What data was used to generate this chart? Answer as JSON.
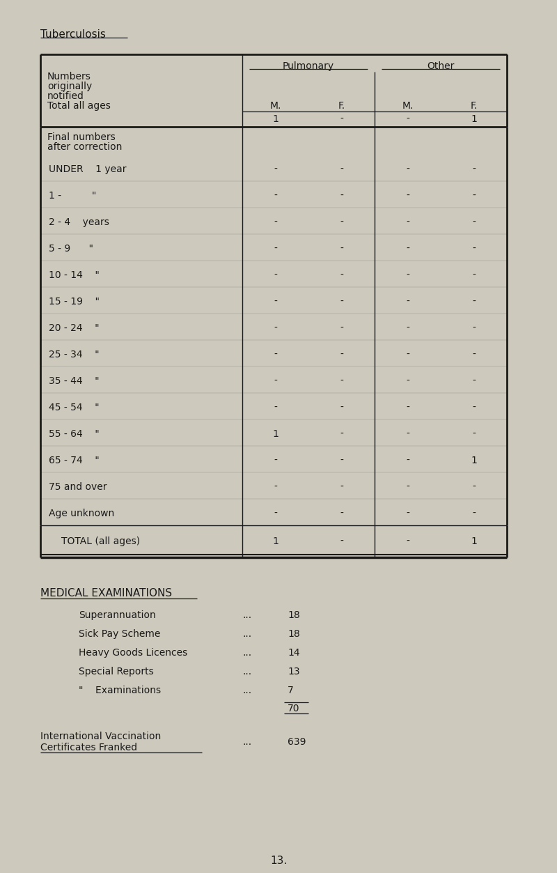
{
  "bg_color": "#cdc9bc",
  "title": "Tuberculosis",
  "page_number": "13.",
  "table": {
    "pulmonary_label": "Pulmonary",
    "other_label": "Other",
    "rows": [
      {
        "label": "UNDER    1 year",
        "vals": [
          "-",
          "-",
          "-",
          "-"
        ]
      },
      {
        "label": "1 -          \"",
        "vals": [
          "-",
          "-",
          "-",
          "-"
        ]
      },
      {
        "label": "2 - 4    years",
        "vals": [
          "-",
          "-",
          "-",
          "-"
        ]
      },
      {
        "label": "5 - 9      \"",
        "vals": [
          "-",
          "-",
          "-",
          "-"
        ]
      },
      {
        "label": "10 - 14    \"",
        "vals": [
          "-",
          "-",
          "-",
          "-"
        ]
      },
      {
        "label": "15 - 19    \"",
        "vals": [
          "-",
          "-",
          "-",
          "-"
        ]
      },
      {
        "label": "20 - 24    \"",
        "vals": [
          "-",
          "-",
          "-",
          "-"
        ]
      },
      {
        "label": "25 - 34    \"",
        "vals": [
          "-",
          "-",
          "-",
          "-"
        ]
      },
      {
        "label": "35 - 44    \"",
        "vals": [
          "-",
          "-",
          "-",
          "-"
        ]
      },
      {
        "label": "45 - 54    \"",
        "vals": [
          "-",
          "-",
          "-",
          "-"
        ]
      },
      {
        "label": "55 - 64    \"",
        "vals": [
          "1",
          "-",
          "-",
          "-"
        ]
      },
      {
        "label": "65 - 74    \"",
        "vals": [
          "-",
          "-",
          "-",
          "1"
        ]
      },
      {
        "label": "75 and over",
        "vals": [
          "-",
          "-",
          "-",
          "-"
        ]
      },
      {
        "label": "Age unknown",
        "vals": [
          "-",
          "-",
          "-",
          "-"
        ]
      }
    ],
    "total_row": {
      "label": "TOTAL (all ages)",
      "vals": [
        "1",
        "-",
        "-",
        "1"
      ]
    }
  },
  "medical_section": {
    "title": "MEDICAL EXAMINATIONS",
    "items": [
      {
        "label": "Superannuation",
        "dots": "...",
        "value": "18"
      },
      {
        "label": "Sick Pay Scheme",
        "dots": "...",
        "value": "18"
      },
      {
        "label": "Heavy Goods Licences",
        "dots": "...",
        "value": "14"
      },
      {
        "label": "Special Reports",
        "dots": "...",
        "value": "13"
      },
      {
        "label": "\"    Examinations",
        "dots": "...",
        "value": "7"
      }
    ],
    "total": "70",
    "vacc_label_line1": "International Vaccination",
    "vacc_label_line2": "Certificates Franked",
    "vacc_dots": "...",
    "vacc_value": "639"
  }
}
